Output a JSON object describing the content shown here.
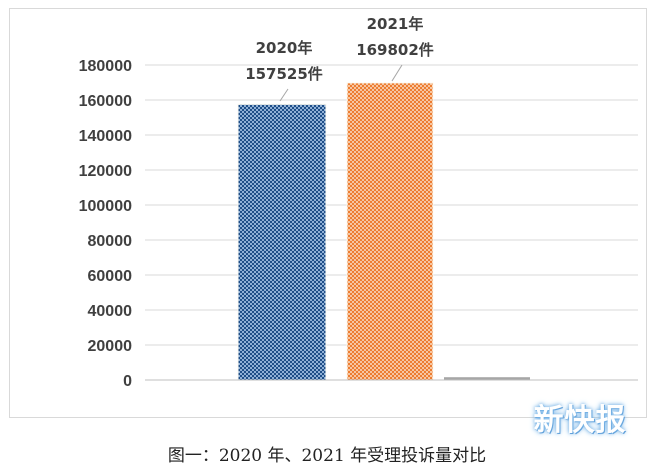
{
  "chart_data": {
    "type": "bar",
    "categories": [
      "2020年",
      "2021年",
      ""
    ],
    "values": [
      157525,
      169802,
      1600
    ],
    "data_labels": [
      {
        "year": "2020年",
        "value": "157525件"
      },
      {
        "year": "2021年",
        "value": "169802件"
      }
    ],
    "yticks": [
      "0",
      "20000",
      "40000",
      "60000",
      "80000",
      "100000",
      "120000",
      "140000",
      "160000",
      "180000"
    ],
    "ylim": [
      0,
      180000
    ],
    "grid": true,
    "colors": [
      "#1f4e87",
      "#ed7d31",
      "#a6a6a6"
    ],
    "patterns": [
      "dotted-grid",
      "dotted-grid",
      "none"
    ]
  },
  "caption": "图一：2020 年、2021 年受理投诉量对比",
  "watermark": "新快报"
}
